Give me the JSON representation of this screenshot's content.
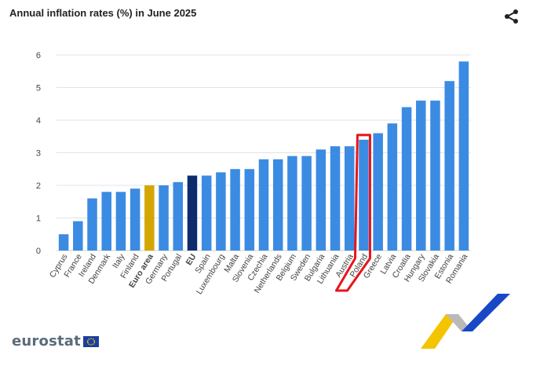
{
  "title": "Annual inflation rates (%) in June 2025",
  "icons": {
    "share": "share-icon",
    "flag": "eu-flag-icon",
    "decoration": "swoosh-icon"
  },
  "logo": {
    "text": "eurostat"
  },
  "colors": {
    "bar_default": "#3b8be3",
    "bar_euro_area": "#d4a600",
    "bar_eu": "#0d2c6e",
    "highlight": "#e8141b",
    "grid": "#e3e3e3"
  },
  "chart_data": {
    "type": "bar",
    "title": "Annual inflation rates (%) in June 2025",
    "xlabel": "",
    "ylabel": "",
    "ylim": [
      0,
      6
    ],
    "yticks": [
      0,
      1,
      2,
      3,
      4,
      5,
      6
    ],
    "grid": true,
    "categories": [
      "Cyprus",
      "France",
      "Ireland",
      "Denmark",
      "Italy",
      "Finland",
      "Euro area",
      "Germany",
      "Portugal",
      "EU",
      "Spain",
      "Luxembourg",
      "Malta",
      "Slovenia",
      "Czechia",
      "Netherlands",
      "Belgium",
      "Sweden",
      "Bulgaria",
      "Lithuania",
      "Austria",
      "Poland",
      "Greece",
      "Latvia",
      "Croatia",
      "Hungary",
      "Slovakia",
      "Estonia",
      "Romania"
    ],
    "values": [
      0.5,
      0.9,
      1.6,
      1.8,
      1.8,
      1.9,
      2.0,
      2.0,
      2.1,
      2.3,
      2.3,
      2.4,
      2.5,
      2.5,
      2.8,
      2.8,
      2.9,
      2.9,
      3.1,
      3.2,
      3.2,
      3.4,
      3.6,
      3.9,
      4.4,
      4.6,
      4.6,
      5.2,
      5.8
    ],
    "bold_categories": [
      "Euro area",
      "EU"
    ],
    "highlighted_category": "Poland"
  }
}
